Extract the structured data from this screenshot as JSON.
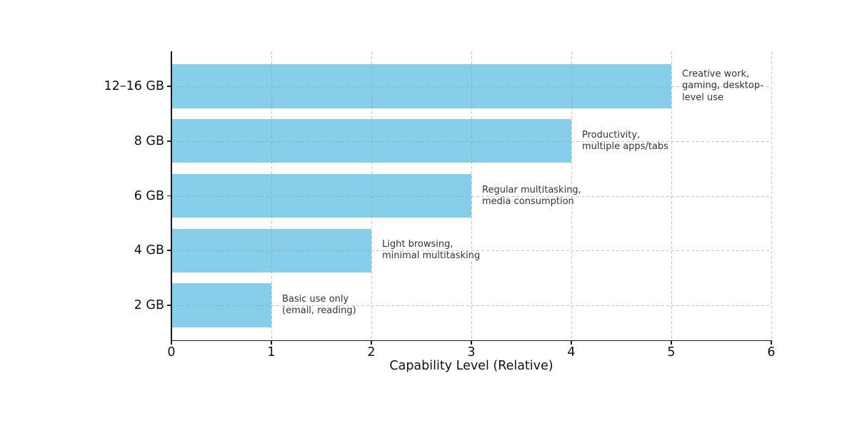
{
  "figure": {
    "background_color": "#ffffff",
    "text_color": "#111111",
    "annotation_color": "#333333",
    "grid_style": "dashed"
  },
  "chart_data": {
    "type": "bar",
    "orientation": "horizontal",
    "title": "",
    "xlabel": "Capability Level (Relative)",
    "ylabel": "",
    "categories": [
      "12–16 GB",
      "8 GB",
      "6 GB",
      "4 GB",
      "2 GB"
    ],
    "values": [
      5,
      4,
      3,
      2,
      1
    ],
    "annotations": [
      "Creative work,\ngaming, desktop-level use",
      "Productivity,\nmultiple apps/tabs",
      "Regular multitasking,\nmedia consumption",
      "Light browsing,\nminimal multitasking",
      "Basic use only\n(email, reading)"
    ],
    "xlim": [
      0,
      6
    ],
    "xticks": [
      "0",
      "1",
      "2",
      "3",
      "4",
      "5",
      "6"
    ],
    "bar_color": "#87CEEB",
    "grid": true,
    "grid_color": "#969696",
    "legend_position": "none"
  }
}
